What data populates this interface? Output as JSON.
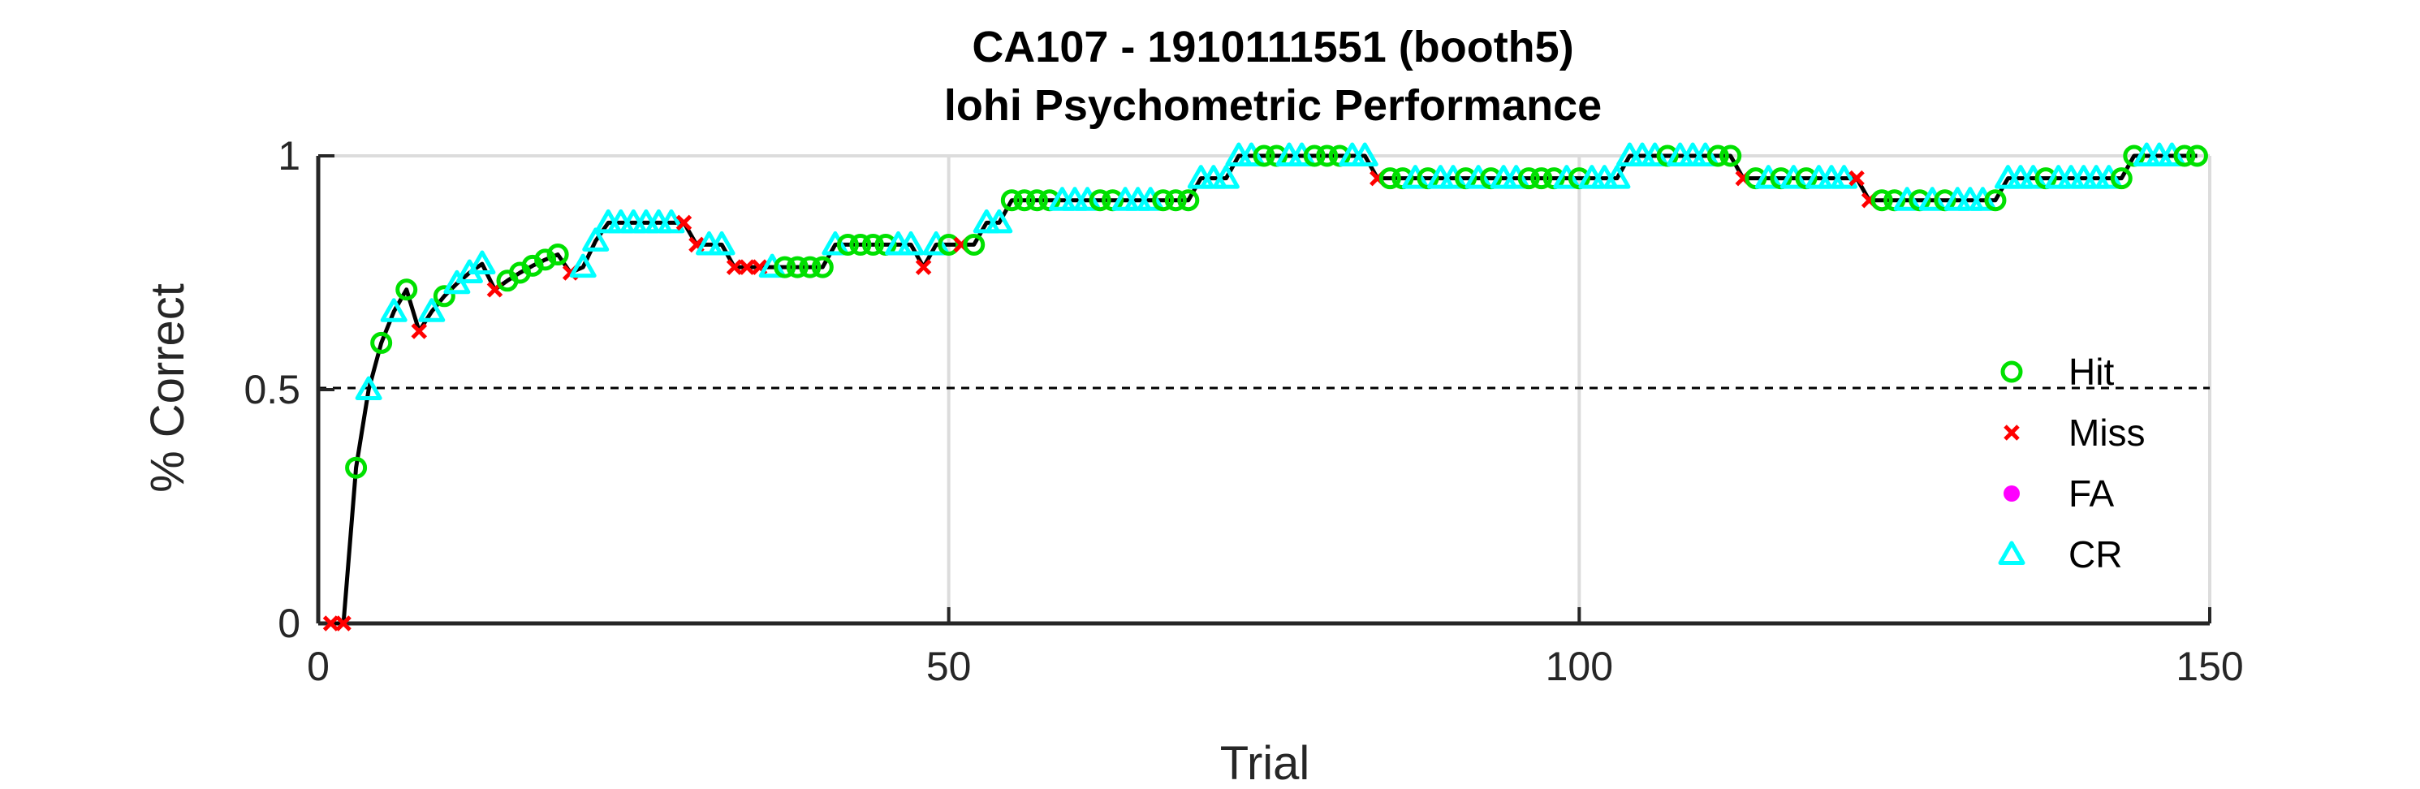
{
  "chart_data": {
    "type": "line",
    "title": "CA107 - 1910111551 (booth5)",
    "subtitle": "lohi Psychometric Performance",
    "xlabel": "Trial",
    "ylabel": "% Correct",
    "xlim": [
      0,
      150
    ],
    "ylim": [
      0,
      1
    ],
    "xticks": [
      0,
      50,
      100,
      150
    ],
    "yticks": [
      0,
      0.5,
      1
    ],
    "xtick_labels": [
      "0",
      "50",
      "100",
      "150"
    ],
    "ytick_labels": [
      "0",
      "0.5",
      "1"
    ],
    "grid": true,
    "chance_line": 0.5,
    "legend_position": "right",
    "legend": [
      "Hit",
      "Miss",
      "FA",
      "CR"
    ],
    "colors": {
      "line": "#000000",
      "hit": "#00e000",
      "miss": "#ff0000",
      "fa": "#ff00ff",
      "cr": "#00ffff",
      "grid": "#dcdcdc",
      "axis": "#262626"
    },
    "x": [
      1,
      2,
      3,
      4,
      5,
      6,
      7,
      8,
      9,
      10,
      11,
      12,
      13,
      14,
      15,
      16,
      17,
      18,
      19,
      20,
      21,
      22,
      23,
      24,
      25,
      26,
      27,
      28,
      29,
      30,
      31,
      32,
      33,
      34,
      35,
      36,
      37,
      38,
      39,
      40,
      41,
      42,
      43,
      44,
      45,
      46,
      47,
      48,
      49,
      50,
      51,
      52,
      53,
      54,
      55,
      56,
      57,
      58,
      59,
      60,
      61,
      62,
      63,
      64,
      65,
      66,
      67,
      68,
      69,
      70,
      71,
      72,
      73,
      74,
      75,
      76,
      77,
      78,
      79,
      80,
      81,
      82,
      83,
      84,
      85,
      86,
      87,
      88,
      89,
      90,
      91,
      92,
      93,
      94,
      95,
      96,
      97,
      98,
      99,
      100,
      101,
      102,
      103,
      104,
      105,
      106,
      107,
      108,
      109,
      110,
      111,
      112,
      113,
      114,
      115,
      116,
      117,
      118,
      119,
      120,
      121,
      122,
      123,
      124,
      125,
      126,
      127,
      128,
      129,
      130,
      131,
      132,
      133,
      134,
      135,
      136,
      137,
      138,
      139,
      140,
      141,
      142,
      143,
      144,
      145,
      146,
      147,
      148,
      149
    ],
    "y": [
      0,
      0,
      0.333,
      0.5,
      0.6,
      0.667,
      0.714,
      0.625,
      0.667,
      0.7,
      0.727,
      0.75,
      0.769,
      0.714,
      0.733,
      0.75,
      0.765,
      0.778,
      0.789,
      0.75,
      0.762,
      0.818,
      0.857,
      0.857,
      0.857,
      0.857,
      0.857,
      0.857,
      0.857,
      0.81,
      0.81,
      0.81,
      0.762,
      0.762,
      0.762,
      0.762,
      0.762,
      0.762,
      0.762,
      0.762,
      0.81,
      0.81,
      0.81,
      0.81,
      0.81,
      0.81,
      0.81,
      0.762,
      0.81,
      0.81,
      0.81,
      0.81,
      0.857,
      0.857,
      0.905,
      0.905,
      0.905,
      0.905,
      0.905,
      0.905,
      0.905,
      0.905,
      0.905,
      0.905,
      0.905,
      0.905,
      0.905,
      0.905,
      0.905,
      0.952,
      0.952,
      0.952,
      1,
      1,
      1,
      1,
      1,
      1,
      1,
      1,
      1,
      1,
      1,
      0.952,
      0.952,
      0.952,
      0.952,
      0.952,
      0.952,
      0.952,
      0.952,
      0.952,
      0.952,
      0.952,
      0.952,
      0.952,
      0.952,
      0.952,
      0.952,
      0.952,
      0.952,
      0.952,
      0.952,
      1,
      1,
      1,
      1,
      1,
      1,
      1,
      1,
      1,
      0.952,
      0.952,
      0.952,
      0.952,
      0.952,
      0.952,
      0.952,
      0.952,
      0.952,
      0.952,
      0.905,
      0.905,
      0.905,
      0.905,
      0.905,
      0.905,
      0.905,
      0.905,
      0.905,
      0.905,
      0.905,
      0.952,
      0.952,
      0.952,
      0.952,
      0.952,
      0.952,
      0.952,
      0.952,
      0.952,
      0.952,
      1,
      1,
      1,
      1,
      1,
      1
    ],
    "outcomes": [
      "M",
      "M",
      "H",
      "C",
      "H",
      "C",
      "H",
      "M",
      "C",
      "H",
      "C",
      "C",
      "C",
      "M",
      "H",
      "H",
      "H",
      "H",
      "H",
      "M",
      "C",
      "C",
      "C",
      "C",
      "C",
      "C",
      "C",
      "C",
      "M",
      "M",
      "C",
      "C",
      "M",
      "M",
      "M",
      "C",
      "H",
      "H",
      "H",
      "H",
      "C",
      "H",
      "H",
      "H",
      "H",
      "C",
      "C",
      "M",
      "C",
      "H",
      "M",
      "H",
      "C",
      "C",
      "H",
      "H",
      "H",
      "H",
      "C",
      "C",
      "C",
      "H",
      "H",
      "C",
      "C",
      "C",
      "H",
      "H",
      "H",
      "C",
      "C",
      "C",
      "C",
      "C",
      "H",
      "H",
      "C",
      "C",
      "H",
      "H",
      "H",
      "C",
      "C",
      "M",
      "H",
      "H",
      "C",
      "H",
      "C",
      "C",
      "H",
      "C",
      "H",
      "C",
      "C",
      "H",
      "H",
      "H",
      "C",
      "H",
      "C",
      "C",
      "C",
      "C",
      "C",
      "C",
      "H",
      "C",
      "C",
      "C",
      "H",
      "H",
      "M",
      "H",
      "C",
      "H",
      "C",
      "H",
      "C",
      "C",
      "C",
      "M",
      "M",
      "H",
      "H",
      "C",
      "H",
      "C",
      "H",
      "C",
      "C",
      "C",
      "H",
      "C",
      "C",
      "C",
      "H",
      "C",
      "C",
      "C",
      "C",
      "C",
      "H",
      "H",
      "C",
      "C",
      "C",
      "H",
      "H"
    ]
  }
}
